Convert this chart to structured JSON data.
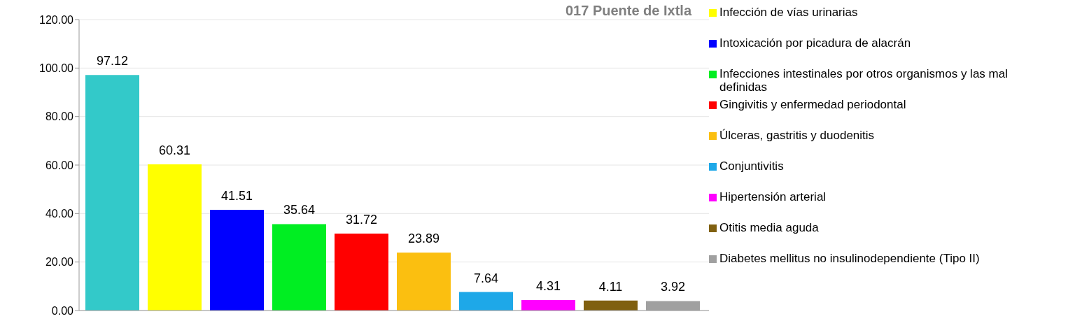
{
  "chart_data": {
    "type": "bar",
    "title": "017 Puente de Ixtla",
    "categories": [
      null
    ],
    "series": [
      {
        "color": "#33c9c9",
        "values": [
          97.12
        ]
      },
      {
        "name": "Infección de vías urinarias",
        "color": "#ffff00",
        "values": [
          60.31
        ]
      },
      {
        "name": "Intoxicación por picadura de alacrán",
        "color": "#0000ff",
        "values": [
          41.51
        ]
      },
      {
        "name": "Infecciones intestinales por otros organismos y las mal definidas",
        "color": "#00ee22",
        "values": [
          35.64
        ]
      },
      {
        "name": "Gingivitis y enfermedad periodontal",
        "color": "#ff0000",
        "values": [
          31.72
        ]
      },
      {
        "name": "Úlceras, gastritis y duodenitis",
        "color": "#fbbf10",
        "values": [
          23.89
        ]
      },
      {
        "name": "Conjuntivitis",
        "color": "#1ea8e8",
        "values": [
          7.64
        ]
      },
      {
        "name": "Hipertensión arterial",
        "color": "#ff00ff",
        "values": [
          4.31
        ]
      },
      {
        "name": "Otitis media aguda",
        "color": "#806010",
        "values": [
          4.11
        ]
      },
      {
        "name": "Diabetes mellitus no insulinodependiente (Tipo II)",
        "color": "#a0a0a0",
        "values": [
          3.92
        ]
      }
    ],
    "ylim": [
      0,
      120
    ],
    "yticks": [
      {
        "value": 0,
        "label": "0.00"
      },
      {
        "value": 20,
        "label": "20.00"
      },
      {
        "value": 40,
        "label": "40.00"
      },
      {
        "value": 60,
        "label": "60.00"
      },
      {
        "value": 80,
        "label": "80.00"
      },
      {
        "value": 100,
        "label": "100.00"
      },
      {
        "value": 120,
        "label": "120.00"
      }
    ],
    "grid": "y",
    "data_labels": true,
    "legend": "right",
    "tick_labels": "y"
  }
}
